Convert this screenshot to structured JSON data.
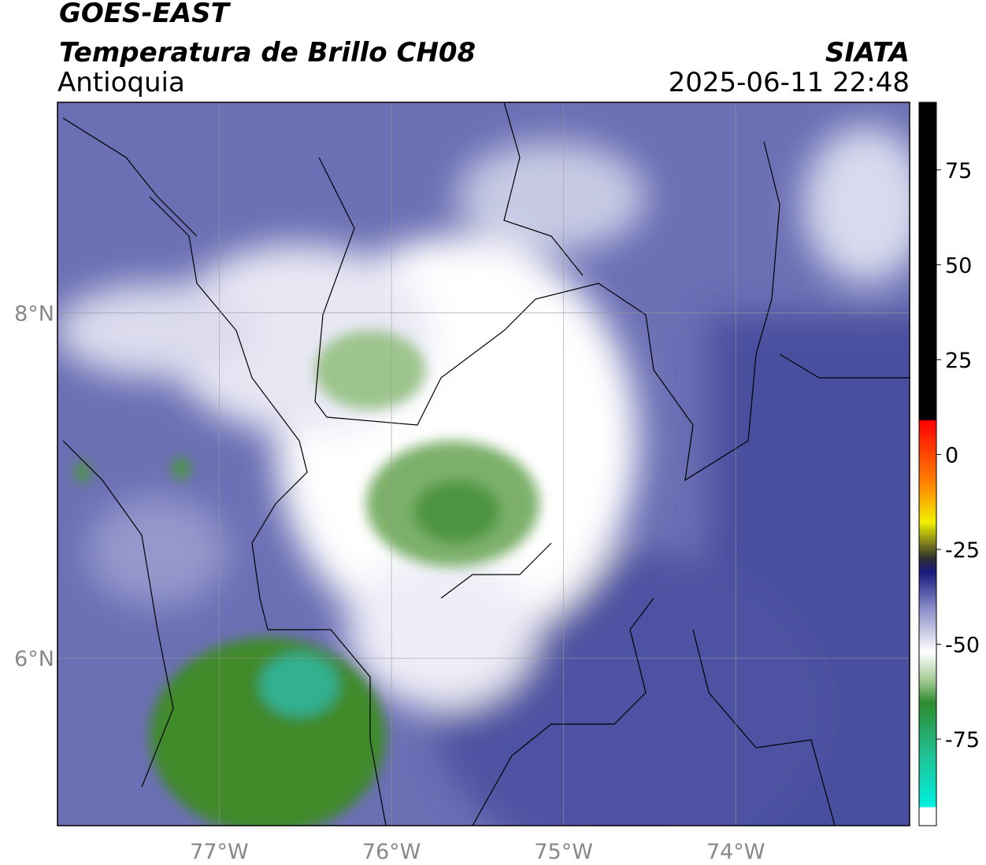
{
  "header": {
    "title": "GOES-EAST",
    "subtitle": "Temperatura de Brillo CH08",
    "region": "Antioquia",
    "source": "SIATA",
    "timestamp": "2025-06-11 22:48"
  },
  "map": {
    "xlim": [
      -77.94,
      -72.99
    ],
    "ylim": [
      5.03,
      9.22
    ],
    "xticks": [
      {
        "value": -77,
        "label": "77°W"
      },
      {
        "value": -76,
        "label": "76°W"
      },
      {
        "value": -75,
        "label": "75°W"
      },
      {
        "value": -74,
        "label": "74°W"
      }
    ],
    "yticks": [
      {
        "value": 8,
        "label": "8°N"
      },
      {
        "value": 6,
        "label": "6°N"
      }
    ],
    "grid": true
  },
  "colorbar": {
    "lim": [
      -97.8,
      92.8
    ],
    "ticks": [
      75,
      50,
      25,
      0,
      -25,
      -50,
      -75
    ]
  }
}
